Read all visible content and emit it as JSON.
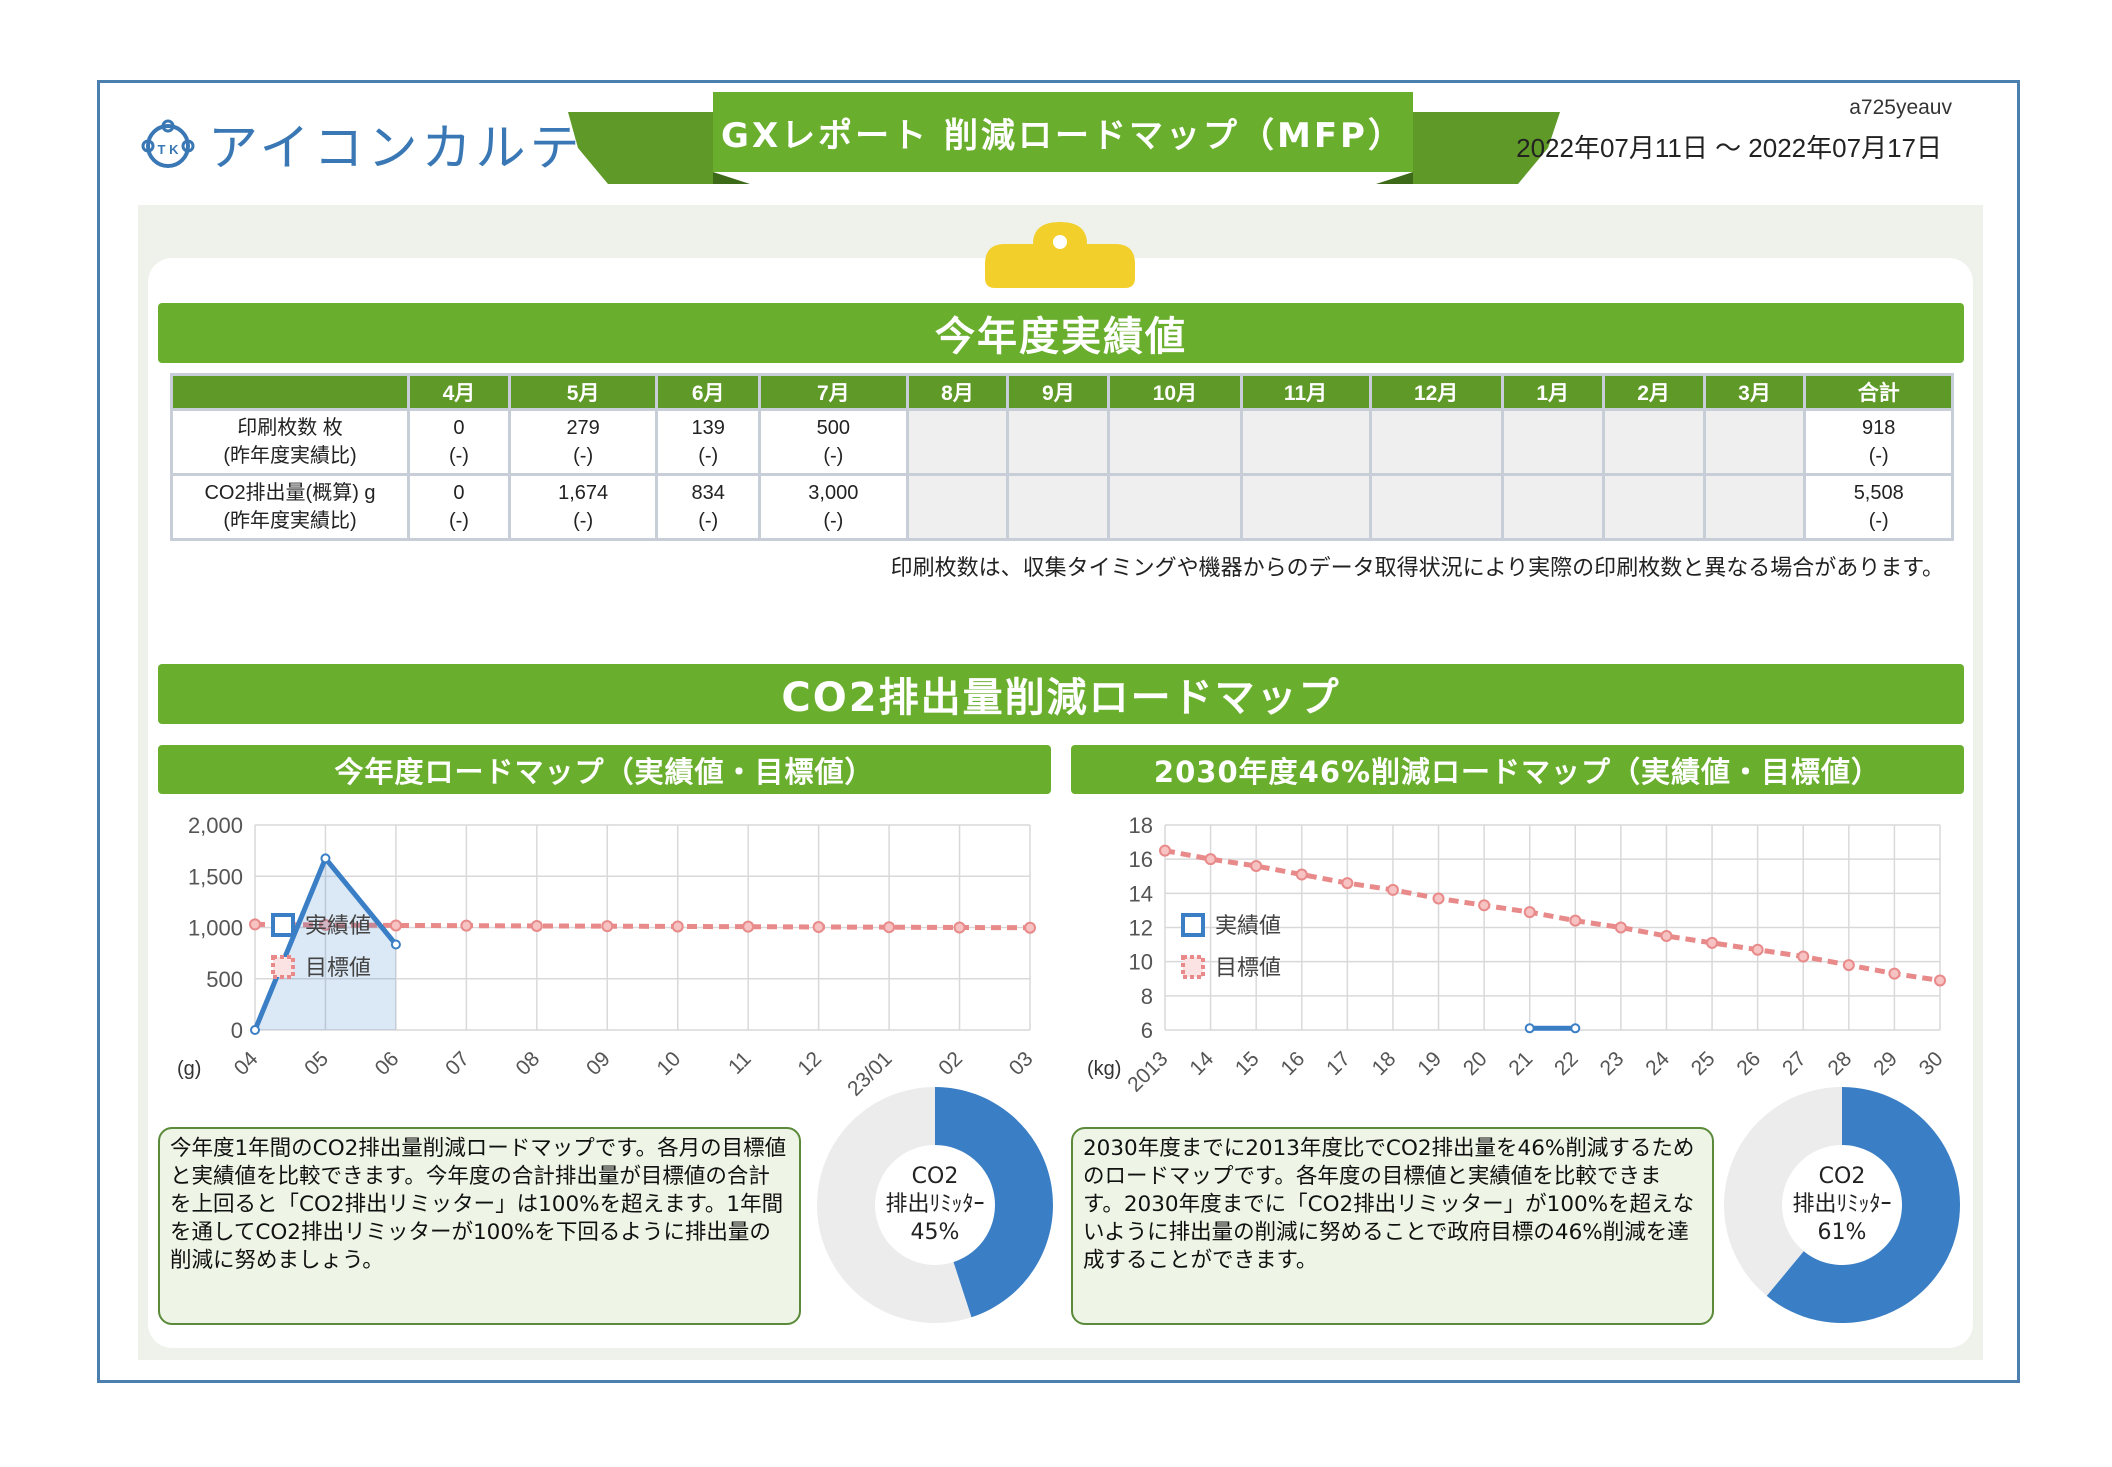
{
  "header": {
    "logo_text": "アイコンカルテ",
    "logo_mark": "T K",
    "title": "GXレポート 削減ロードマップ（MFP）",
    "report_id": "a725yeauv",
    "date_range": "2022年07月11日 〜 2022年07月17日"
  },
  "performance": {
    "title": "今年度実績値",
    "months": [
      "4月",
      "5月",
      "6月",
      "7月",
      "8月",
      "9月",
      "10月",
      "11月",
      "12月",
      "1月",
      "2月",
      "3月",
      "合計"
    ],
    "rows": [
      {
        "label1": "印刷枚数 枚",
        "label2": "(昨年度実績比)",
        "cells": [
          [
            "0",
            "(-)"
          ],
          [
            "279",
            "(-)"
          ],
          [
            "139",
            "(-)"
          ],
          [
            "500",
            "(-)"
          ],
          [
            "",
            ""
          ],
          [
            "",
            ""
          ],
          [
            "",
            ""
          ],
          [
            "",
            ""
          ],
          [
            "",
            ""
          ],
          [
            "",
            ""
          ],
          [
            "",
            ""
          ],
          [
            "",
            ""
          ],
          [
            "918",
            "(-)"
          ]
        ]
      },
      {
        "label1": "CO2排出量(概算) g",
        "label2": "(昨年度実績比)",
        "cells": [
          [
            "0",
            "(-)"
          ],
          [
            "1,674",
            "(-)"
          ],
          [
            "834",
            "(-)"
          ],
          [
            "3,000",
            "(-)"
          ],
          [
            "",
            ""
          ],
          [
            "",
            ""
          ],
          [
            "",
            ""
          ],
          [
            "",
            ""
          ],
          [
            "",
            ""
          ],
          [
            "",
            ""
          ],
          [
            "",
            ""
          ],
          [
            "",
            ""
          ],
          [
            "5,508",
            "(-)"
          ]
        ]
      }
    ],
    "note": "印刷枚数は、収集タイミングや機器からのデータ取得状況により実際の印刷枚数と異なる場合があります。"
  },
  "roadmap": {
    "title": "CO2排出量削減ロードマップ",
    "left_title": "今年度ロードマップ（実績値・目標値）",
    "right_title": "2030年度46%削減ロードマップ（実績値・目標値）",
    "left_text": "今年度1年間のCO2排出量削減ロードマップです。各月の目標値と実績値を比較できます。今年度の合計排出量が目標値の合計を上回ると「CO2排出リミッター」は100%を超えます。1年間を通してCO2排出リミッターが100%を下回るように排出量の削減に努めましょう。",
    "right_text": "2030年度までに2013年度比でCO2排出量を46%削減するためのロードマップです。各年度の目標値と実績値を比較できます。2030年度までに「CO2排出リミッター」が100%を超えないように排出量の削減に努めることで政府目標の46%削減を達成することができます。",
    "left_donut": {
      "line1": "CO2",
      "line2": "排出ﾘﾐｯﾀｰ",
      "line3": "45%",
      "value": 45
    },
    "right_donut": {
      "line1": "CO2",
      "line2": "排出ﾘﾐｯﾀｰ",
      "line3": "61%",
      "value": 61
    },
    "colors": {
      "actual": "#3a7fc6",
      "target": "#e88a8a",
      "green": "#6aae2e",
      "donut_bg": "#ececec"
    }
  },
  "chart_data": [
    {
      "type": "line",
      "categories": [
        "04",
        "05",
        "06",
        "07",
        "08",
        "09",
        "10",
        "11",
        "12",
        "23/01",
        "02",
        "03"
      ],
      "ylim": [
        0,
        2000
      ],
      "yticks": [
        "0",
        "500",
        "1,000",
        "1,500",
        "2,000"
      ],
      "yunit": "(g)",
      "series": [
        {
          "name": "実績値",
          "values": [
            0,
            1674,
            834,
            null,
            null,
            null,
            null,
            null,
            null,
            null,
            null,
            null
          ]
        },
        {
          "name": "目標値",
          "values": [
            1030,
            1025,
            1020,
            1018,
            1015,
            1013,
            1010,
            1008,
            1005,
            1003,
            1000,
            998
          ]
        }
      ],
      "legend": "inside-left"
    },
    {
      "type": "line",
      "categories": [
        "2013",
        "14",
        "15",
        "16",
        "17",
        "18",
        "19",
        "20",
        "21",
        "22",
        "23",
        "24",
        "25",
        "26",
        "27",
        "28",
        "29",
        "30"
      ],
      "ylim": [
        6,
        18
      ],
      "yticks": [
        "6",
        "8",
        "10",
        "12",
        "14",
        "16",
        "18"
      ],
      "yunit": "(kg)",
      "series": [
        {
          "name": "実績値",
          "values": [
            null,
            null,
            null,
            null,
            null,
            null,
            null,
            null,
            6.1,
            6.1,
            null,
            null,
            null,
            null,
            null,
            null,
            null,
            null
          ]
        },
        {
          "name": "目標値",
          "values": [
            16.5,
            16.0,
            15.6,
            15.1,
            14.6,
            14.2,
            13.7,
            13.3,
            12.9,
            12.4,
            12.0,
            11.5,
            11.1,
            10.7,
            10.3,
            9.8,
            9.3,
            8.9
          ]
        }
      ],
      "legend": "inside-left"
    }
  ]
}
